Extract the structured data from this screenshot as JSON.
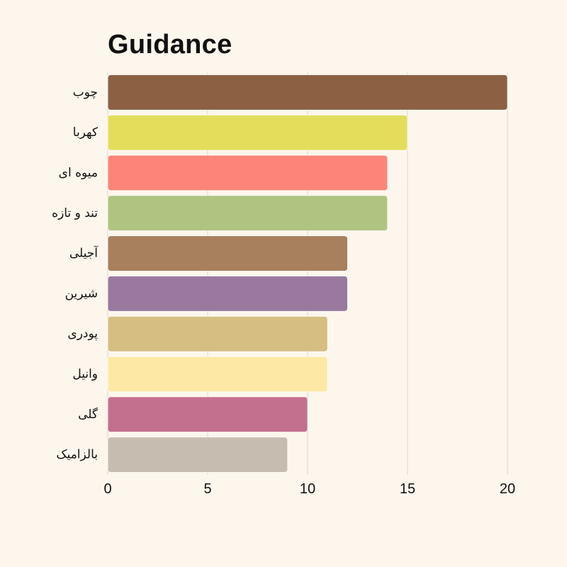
{
  "chart_data": {
    "type": "bar",
    "orientation": "horizontal",
    "title": "Guidance",
    "xlabel": "",
    "ylabel": "",
    "xlim": [
      0,
      20
    ],
    "x_ticks": [
      0,
      5,
      10,
      15,
      20
    ],
    "grid": "vertical",
    "categories": [
      "چوب",
      "کهربا",
      "میوه ای",
      "تند و تازه",
      "آجیلی",
      "شیرین",
      "پودری",
      "وانیل",
      "گلی",
      "بالزامیک"
    ],
    "values": [
      20,
      15,
      14,
      14,
      12,
      12,
      11,
      11,
      10,
      9
    ],
    "colors": [
      "#8b6043",
      "#e3dd5c",
      "#fd8479",
      "#afc481",
      "#a9805d",
      "#9a799f",
      "#d6be82",
      "#fde8a5",
      "#c3708e",
      "#c6bdb0"
    ]
  }
}
